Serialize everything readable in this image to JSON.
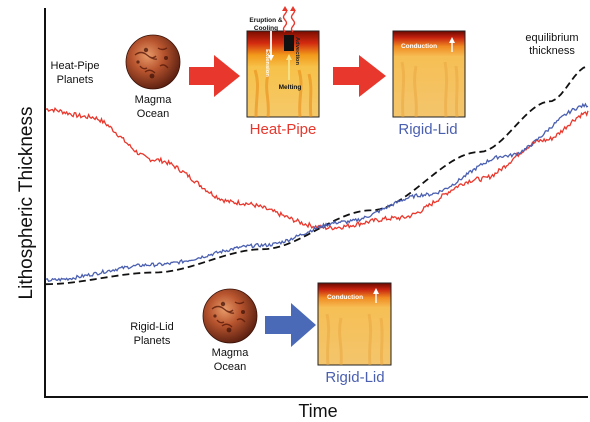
{
  "axes": {
    "ylabel": "Lithospheric Thickness",
    "xlabel": "Time"
  },
  "equilibrium_label": [
    "equilibrium",
    "thickness"
  ],
  "top_row": {
    "planet_label": [
      "Heat-Pipe",
      "Planets"
    ],
    "ocean_label": [
      "Magma",
      "Ocean"
    ],
    "heat_pipe_caption": "Heat-Pipe",
    "rigid_lid_caption": "Rigid-Lid",
    "eruption_label": [
      "Eruption &",
      "Cooling"
    ],
    "extension_label": "Extension",
    "advection_label": "Advection",
    "melting_label": "Melting",
    "conduction_label": "Conduction"
  },
  "bottom_row": {
    "planet_label": [
      "Rigid-Lid",
      "Planets"
    ],
    "ocean_label": [
      "Magma",
      "Ocean"
    ],
    "rigid_lid_caption": "Rigid-Lid",
    "conduction_label": "Conduction"
  },
  "colors": {
    "heat_pipe_red": "#e8382d",
    "rigid_lid_blue": "#4a5fb0",
    "arrow_red": "#e8382d",
    "arrow_blue": "#4a6ab8",
    "equilibrium": "#111111"
  },
  "series_shape": {
    "time_range": [
      0,
      1
    ],
    "heat_pipe_red": [
      [
        0.0,
        0.74
      ],
      [
        0.08,
        0.72
      ],
      [
        0.2,
        0.61
      ],
      [
        0.35,
        0.5
      ],
      [
        0.52,
        0.435
      ],
      [
        0.65,
        0.46
      ],
      [
        0.8,
        0.56
      ],
      [
        0.92,
        0.66
      ],
      [
        1.0,
        0.73
      ]
    ],
    "rigid_lid_blue": [
      [
        0.0,
        0.3
      ],
      [
        0.2,
        0.34
      ],
      [
        0.4,
        0.39
      ],
      [
        0.55,
        0.45
      ],
      [
        0.7,
        0.52
      ],
      [
        0.85,
        0.62
      ],
      [
        1.0,
        0.75
      ]
    ],
    "equilibrium": [
      [
        0.0,
        0.29
      ],
      [
        0.2,
        0.32
      ],
      [
        0.4,
        0.38
      ],
      [
        0.6,
        0.48
      ],
      [
        0.8,
        0.63
      ],
      [
        0.93,
        0.76
      ],
      [
        1.0,
        0.85
      ]
    ]
  }
}
